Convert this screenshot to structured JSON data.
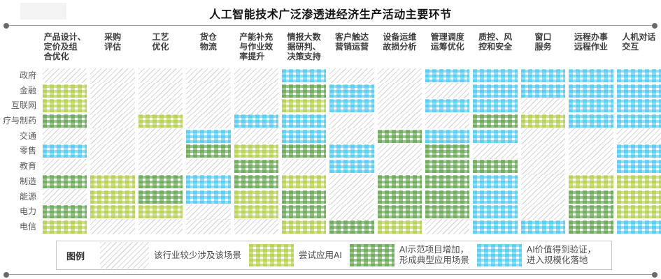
{
  "title": "人工智能技术广泛渗透进经济生产活动主要环节",
  "header": {
    "columns_display": [
      "产品设计、\n定价及组\n合优化",
      "采购\n评估",
      "工艺\n优化",
      "货仓\n物流",
      "产能补充\n与作业效\n率提升",
      "情报大数\n据研判、\n决策支持",
      "客户触达\n营销运营",
      "设备运维\n故损分析",
      "管理调度\n运筹优化",
      "质控、风\n控和安全",
      "窗口\n服务",
      "远程办事\n远程作业",
      "人机对话\n交互"
    ]
  },
  "legend": {
    "label": "图例",
    "items": [
      {
        "level": 0,
        "swatch": "gray-hatch-swatch",
        "text": "该行业较少涉及该场景"
      },
      {
        "level": 1,
        "swatch": "yellow-green-swatch",
        "text": "尝试应用AI"
      },
      {
        "level": 2,
        "swatch": "green-swatch",
        "text": "AI示范项目增加，\n形成典型应用场景"
      },
      {
        "level": 3,
        "swatch": "blue-swatch",
        "text": "AI价值得到验证，\n进入规模化落地"
      }
    ]
  },
  "colors": {
    "gray_hatch": "#d9d9d9",
    "yellow_green": "#a8c832",
    "green": "#589e42",
    "blue": "#38c2f0",
    "rule_gray": "#9b9b9b"
  },
  "chart_data": {
    "type": "heatmap",
    "title": "人工智能技术广泛渗透进经济生产活动主要环节",
    "columns": [
      "产品设计、定价及组合优化",
      "采购评估",
      "工艺优化",
      "货仓物流",
      "产能补充与作业效率提升",
      "情报大数据研判、决策支持",
      "客户触达营销运营",
      "设备运维故损分析",
      "管理调度运筹优化",
      "质控、风控和安全",
      "窗口服务",
      "远程办事远程作业",
      "人机对话交互"
    ],
    "rows": [
      "政府",
      "金融",
      "互联网",
      "疗与制药",
      "交通",
      "零售",
      "教育",
      "制造",
      "能源",
      "电力",
      "电信"
    ],
    "levels": {
      "0": "该行业较少涉及该场景",
      "1": "尝试应用AI",
      "2": "AI示范项目增加，形成典型应用场景",
      "3": "AI价值得到验证，进入规模化落地"
    },
    "matrix": [
      [
        0,
        0,
        0,
        0,
        0,
        3,
        0,
        0,
        3,
        3,
        3,
        3,
        3
      ],
      [
        1,
        0,
        0,
        0,
        0,
        2,
        3,
        0,
        0,
        3,
        3,
        3,
        3
      ],
      [
        1,
        0,
        0,
        0,
        0,
        1,
        3,
        0,
        3,
        3,
        0,
        3,
        3
      ],
      [
        2,
        0,
        1,
        0,
        3,
        3,
        0,
        0,
        0,
        2,
        1,
        3,
        3
      ],
      [
        0,
        0,
        0,
        3,
        0,
        3,
        0,
        2,
        3,
        3,
        0,
        0,
        0
      ],
      [
        3,
        0,
        0,
        2,
        1,
        2,
        3,
        0,
        2,
        0,
        0,
        0,
        3
      ],
      [
        0,
        0,
        0,
        0,
        2,
        0,
        3,
        0,
        2,
        2,
        0,
        0,
        3
      ],
      [
        2,
        1,
        2,
        3,
        2,
        1,
        0,
        2,
        2,
        3,
        0,
        1,
        1
      ],
      [
        0,
        1,
        2,
        3,
        1,
        2,
        0,
        2,
        2,
        3,
        0,
        2,
        1
      ],
      [
        2,
        1,
        1,
        0,
        1,
        2,
        0,
        2,
        2,
        3,
        0,
        2,
        1
      ],
      [
        1,
        0,
        0,
        0,
        0,
        1,
        2,
        1,
        0,
        3,
        3,
        2,
        3
      ]
    ]
  }
}
